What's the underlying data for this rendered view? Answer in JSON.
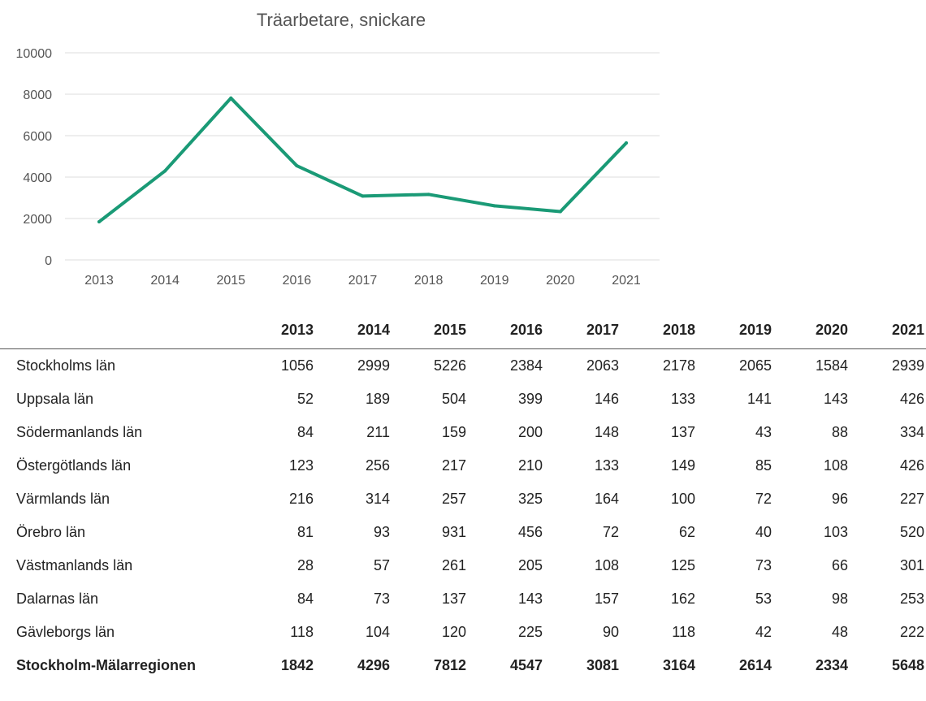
{
  "chart_data": {
    "type": "line",
    "title": "Träarbetare, snickare",
    "xlabel": "",
    "ylabel": "",
    "categories": [
      "2013",
      "2014",
      "2015",
      "2016",
      "2017",
      "2018",
      "2019",
      "2020",
      "2021"
    ],
    "series": [
      {
        "values": [
          1842,
          4296,
          7812,
          4547,
          3081,
          3164,
          2614,
          2334,
          5648
        ],
        "color": "#1a9a76"
      }
    ],
    "y_ticks": [
      "0",
      "2000",
      "4000",
      "6000",
      "8000",
      "10000"
    ],
    "ylim": [
      0,
      10000
    ],
    "grid": true,
    "legend": "none"
  },
  "table": {
    "header": [
      "2013",
      "2014",
      "2015",
      "2016",
      "2017",
      "2018",
      "2019",
      "2020",
      "2021"
    ],
    "rows": [
      {
        "region": "Stockholms län",
        "values": [
          "1056",
          "2999",
          "5226",
          "2384",
          "2063",
          "2178",
          "2065",
          "1584",
          "2939"
        ]
      },
      {
        "region": "Uppsala län",
        "values": [
          "52",
          "189",
          "504",
          "399",
          "146",
          "133",
          "141",
          "143",
          "426"
        ]
      },
      {
        "region": "Södermanlands län",
        "values": [
          "84",
          "211",
          "159",
          "200",
          "148",
          "137",
          "43",
          "88",
          "334"
        ]
      },
      {
        "region": "Östergötlands län",
        "values": [
          "123",
          "256",
          "217",
          "210",
          "133",
          "149",
          "85",
          "108",
          "426"
        ]
      },
      {
        "region": "Värmlands län",
        "values": [
          "216",
          "314",
          "257",
          "325",
          "164",
          "100",
          "72",
          "96",
          "227"
        ]
      },
      {
        "region": "Örebro län",
        "values": [
          "81",
          "93",
          "931",
          "456",
          "72",
          "62",
          "40",
          "103",
          "520"
        ]
      },
      {
        "region": "Västmanlands län",
        "values": [
          "28",
          "57",
          "261",
          "205",
          "108",
          "125",
          "73",
          "66",
          "301"
        ]
      },
      {
        "region": "Dalarnas län",
        "values": [
          "84",
          "73",
          "137",
          "143",
          "157",
          "162",
          "53",
          "98",
          "253"
        ]
      },
      {
        "region": "Gävleborgs län",
        "values": [
          "118",
          "104",
          "120",
          "225",
          "90",
          "118",
          "42",
          "48",
          "222"
        ]
      },
      {
        "region": "Stockholm-Mälarregionen",
        "values": [
          "1842",
          "4296",
          "7812",
          "4547",
          "3081",
          "3164",
          "2614",
          "2334",
          "5648"
        ],
        "total": true
      }
    ]
  }
}
